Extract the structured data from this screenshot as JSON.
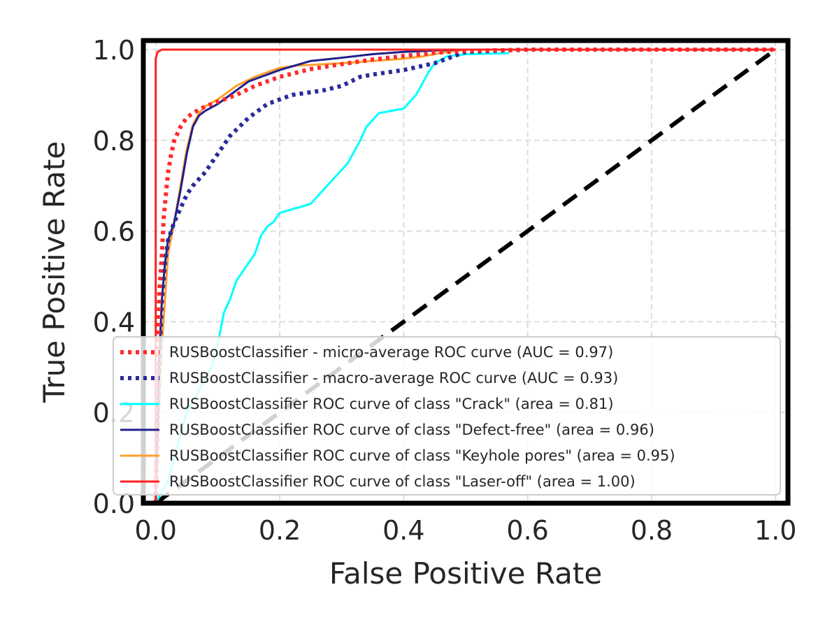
{
  "chart_data": {
    "type": "line",
    "title": "",
    "xlabel": "False Positive Rate",
    "ylabel": "True Positive Rate",
    "xlim": [
      -0.02,
      1.02
    ],
    "ylim": [
      0.0,
      1.02
    ],
    "xticks": [
      0.0,
      0.2,
      0.4,
      0.6,
      0.8,
      1.0
    ],
    "yticks": [
      0.0,
      0.2,
      0.4,
      0.6,
      0.8,
      1.0
    ],
    "xtick_labels": [
      "0.0",
      "0.2",
      "0.4",
      "0.6",
      "0.8",
      "1.0"
    ],
    "ytick_labels": [
      "0.0",
      "0.2",
      "0.4",
      "0.6",
      "0.8",
      "1.0"
    ],
    "grid": true,
    "legend_position": "lower-right",
    "series": [
      {
        "name": "RUSBoostClassifier - micro-average ROC curve (AUC = 0.97)",
        "color": "#ff2a2a",
        "style": "dotted",
        "x": [
          0.0,
          0.003,
          0.006,
          0.01,
          0.013,
          0.017,
          0.02,
          0.025,
          0.03,
          0.04,
          0.05,
          0.06,
          0.08,
          0.1,
          0.13,
          0.16,
          0.2,
          0.25,
          0.3,
          0.35,
          0.4,
          0.45,
          0.5,
          0.6,
          0.8,
          1.0
        ],
        "y": [
          0.0,
          0.32,
          0.47,
          0.55,
          0.63,
          0.69,
          0.73,
          0.77,
          0.8,
          0.83,
          0.85,
          0.86,
          0.875,
          0.885,
          0.9,
          0.92,
          0.94,
          0.957,
          0.968,
          0.978,
          0.986,
          0.993,
          0.997,
          1.0,
          1.0,
          1.0
        ]
      },
      {
        "name": "RUSBoostClassifier - macro-average ROC curve (AUC = 0.93)",
        "color": "#2b2b99",
        "style": "dotted",
        "x": [
          0.0,
          0.005,
          0.01,
          0.015,
          0.02,
          0.03,
          0.04,
          0.05,
          0.06,
          0.07,
          0.08,
          0.1,
          0.12,
          0.15,
          0.18,
          0.22,
          0.27,
          0.3,
          0.33,
          0.35,
          0.4,
          0.45,
          0.47,
          0.5,
          0.6,
          0.8,
          1.0
        ],
        "y": [
          0.0,
          0.3,
          0.45,
          0.53,
          0.58,
          0.62,
          0.65,
          0.68,
          0.7,
          0.715,
          0.73,
          0.77,
          0.81,
          0.85,
          0.88,
          0.9,
          0.91,
          0.92,
          0.94,
          0.945,
          0.955,
          0.97,
          0.98,
          0.995,
          1.0,
          1.0,
          1.0
        ]
      },
      {
        "name": "RUSBoostClassifier ROC curve of class \"Crack\" (area = 0.81)",
        "color": "#00ffff",
        "style": "solid",
        "x": [
          0.0,
          0.02,
          0.03,
          0.05,
          0.07,
          0.09,
          0.1,
          0.11,
          0.12,
          0.13,
          0.14,
          0.16,
          0.17,
          0.18,
          0.19,
          0.2,
          0.25,
          0.27,
          0.29,
          0.31,
          0.33,
          0.34,
          0.36,
          0.4,
          0.42,
          0.44,
          0.45,
          0.47,
          0.5,
          0.57
        ],
        "y": [
          0.0,
          0.05,
          0.1,
          0.2,
          0.25,
          0.3,
          0.35,
          0.42,
          0.45,
          0.49,
          0.51,
          0.55,
          0.59,
          0.61,
          0.62,
          0.64,
          0.66,
          0.69,
          0.72,
          0.75,
          0.8,
          0.83,
          0.86,
          0.87,
          0.9,
          0.95,
          0.97,
          0.985,
          0.99,
          0.992
        ]
      },
      {
        "name": "RUSBoostClassifier ROC curve of class \"Defect-free\" (area = 0.96)",
        "color": "#1f1f8a",
        "style": "solid",
        "x": [
          0.0,
          0.005,
          0.01,
          0.015,
          0.02,
          0.03,
          0.04,
          0.05,
          0.06,
          0.07,
          0.08,
          0.1,
          0.12,
          0.15,
          0.2,
          0.25,
          0.3,
          0.35,
          0.4,
          0.45,
          0.5,
          0.6,
          0.8,
          1.0
        ],
        "y": [
          0.0,
          0.3,
          0.45,
          0.53,
          0.58,
          0.62,
          0.69,
          0.77,
          0.83,
          0.855,
          0.865,
          0.88,
          0.9,
          0.93,
          0.955,
          0.975,
          0.982,
          0.99,
          0.995,
          0.998,
          1.0,
          1.0,
          1.0,
          1.0
        ]
      },
      {
        "name": "RUSBoostClassifier ROC curve of class \"Keyhole pores\" (area = 0.95)",
        "color": "#ff9f2b",
        "style": "solid",
        "x": [
          0.0,
          0.005,
          0.01,
          0.015,
          0.02,
          0.03,
          0.04,
          0.05,
          0.06,
          0.07,
          0.08,
          0.1,
          0.13,
          0.16,
          0.2,
          0.23,
          0.3,
          0.35,
          0.4,
          0.43,
          0.47,
          0.5,
          0.6,
          0.8,
          1.0
        ],
        "y": [
          0.0,
          0.2,
          0.35,
          0.45,
          0.55,
          0.62,
          0.7,
          0.78,
          0.835,
          0.86,
          0.875,
          0.89,
          0.92,
          0.94,
          0.96,
          0.965,
          0.97,
          0.975,
          0.98,
          0.985,
          0.995,
          1.0,
          1.0,
          1.0,
          1.0
        ]
      },
      {
        "name": "RUSBoostClassifier ROC curve of class \"Laser-off\" (area = 1.00)",
        "color": "#ff2020",
        "style": "solid",
        "x": [
          0.0,
          0.0,
          0.003,
          0.01,
          0.02,
          0.05,
          0.2,
          0.5,
          0.8,
          1.0
        ],
        "y": [
          0.0,
          0.98,
          0.995,
          1.0,
          1.0,
          1.0,
          1.0,
          1.0,
          1.0,
          1.0
        ]
      }
    ],
    "reference_line": {
      "x": [
        0.0,
        1.0
      ],
      "y": [
        0.0,
        1.0
      ],
      "color": "#000000",
      "style": "dashed"
    }
  }
}
